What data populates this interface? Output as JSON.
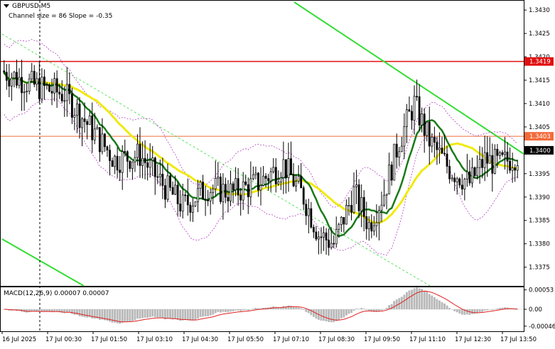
{
  "header": {
    "symbol_label": "GBPUSD,M5",
    "indicator_label": "Channel size = 86 Slope = -0.35"
  },
  "price_scale": {
    "ticks": [
      "1.3430",
      "1.3425",
      "1.3420",
      "1.3415",
      "1.3410",
      "1.3405",
      "1.3395",
      "1.3390",
      "1.3385",
      "1.3380",
      "1.3375"
    ],
    "tick_values": [
      1.343,
      1.3425,
      1.342,
      1.3415,
      1.341,
      1.3405,
      1.3395,
      1.339,
      1.3385,
      1.338,
      1.3375
    ],
    "badges": [
      {
        "label": "1.3419",
        "value": 1.3419,
        "bg": "#e01010",
        "fg": "#ffffff"
      },
      {
        "label": "1.3403",
        "value": 1.3403,
        "bg": "#f26b3a",
        "fg": "#ffffff"
      },
      {
        "label": "1.3400",
        "value": 1.34,
        "bg": "#000000",
        "fg": "#ffffff"
      }
    ]
  },
  "macd": {
    "label": "MACD(12,26,9) 0.00007 0.00007",
    "ticks": [
      "0.00053",
      "0.00",
      "-0.00046"
    ],
    "tick_values": [
      0.00053,
      0.0,
      -0.00046
    ]
  },
  "time_axis": {
    "labels": [
      "16 Jul 2025",
      "17 Jul 00:30",
      "17 Jul 01:50",
      "17 Jul 03:10",
      "17 Jul 04:30",
      "17 Jul 05:50",
      "17 Jul 07:10",
      "17 Jul 08:30",
      "17 Jul 09:50",
      "17 Jul 11:10",
      "17 Jul 12:30",
      "17 Jul 13:50"
    ]
  },
  "colors": {
    "bull_candle": "#ffffff",
    "bear_candle": "#000000",
    "ma_fast": "#1a7a1a",
    "ma_slow": "#f0ea10",
    "channel_line": "#33dd33",
    "resistance_line": "#e01010",
    "level_line": "#f26b3a",
    "envelope": "#b040c0",
    "macd_hist": "#b8b8b8",
    "macd_signal": "#e02020"
  },
  "chart_data": {
    "type": "candlestick",
    "instrument": "GBPUSD",
    "timeframe": "M5",
    "price_range": [
      1.3371,
      1.3432
    ],
    "macd_range": [
      -0.0006,
      0.0006
    ],
    "horizontal_levels": [
      1.3419,
      1.3403
    ],
    "candle_seed": [
      [
        1.3416,
        1.3419,
        1.3413,
        1.3418
      ],
      [
        1.3418,
        1.3421,
        1.3415,
        1.3417
      ],
      [
        1.3417,
        1.342,
        1.3414,
        1.3416
      ],
      [
        1.3416,
        1.3419,
        1.3413,
        1.3415
      ],
      [
        1.3415,
        1.3422,
        1.3412,
        1.3418
      ],
      [
        1.3418,
        1.3419,
        1.3413,
        1.3414
      ],
      [
        1.3414,
        1.3417,
        1.3411,
        1.3416
      ],
      [
        1.3416,
        1.3418,
        1.3412,
        1.3413
      ],
      [
        1.3413,
        1.3416,
        1.341,
        1.3415
      ],
      [
        1.3415,
        1.3418,
        1.3412,
        1.3414
      ],
      [
        1.3414,
        1.3415,
        1.3409,
        1.341
      ],
      [
        1.341,
        1.3413,
        1.3407,
        1.3411
      ]
    ]
  }
}
